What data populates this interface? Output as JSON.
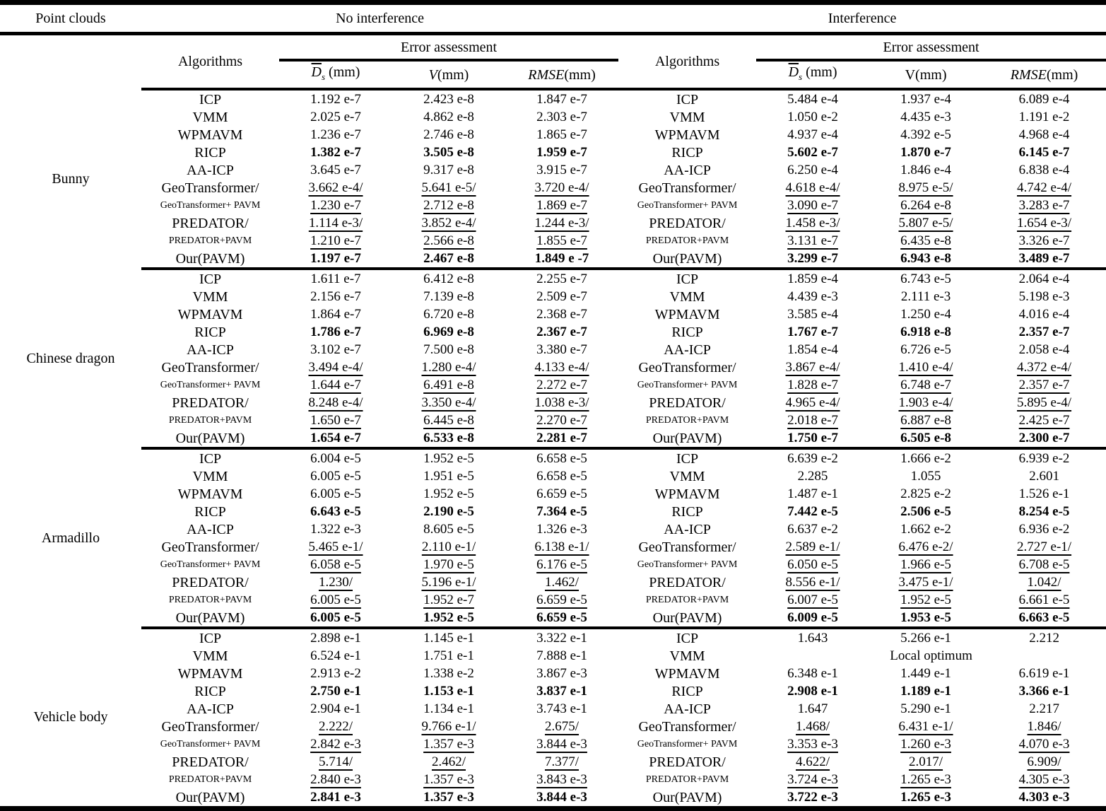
{
  "header": {
    "point_clouds": "Point clouds",
    "no_interference": "No interference",
    "interference": "Interference",
    "algorithms": "Algorithms",
    "error_assessment": "Error assessment",
    "ds_symbol": "D",
    "ds_sub": "s",
    "ds_unit": " (mm)",
    "v_label": "V",
    "v_unit": "(mm)",
    "rmse_label": "RMSE",
    "rmse_unit": "(mm)"
  },
  "sections": [
    {
      "name": "Bunny",
      "rows": [
        {
          "alg": "ICP",
          "emphasis": "normal",
          "small": false,
          "left": [
            "1.192 e-7",
            "2.423 e-8",
            "1.847 e-7"
          ],
          "right": [
            "5.484 e-4",
            "1.937 e-4",
            "6.089 e-4"
          ]
        },
        {
          "alg": "VMM",
          "emphasis": "normal",
          "small": false,
          "left": [
            "2.025 e-7",
            "4.862 e-8",
            "2.303 e-7"
          ],
          "right": [
            "1.050 e-2",
            "4.435 e-3",
            "1.191 e-2"
          ]
        },
        {
          "alg": "WPMAVM",
          "emphasis": "normal",
          "small": false,
          "left": [
            "1.236 e-7",
            "2.746 e-8",
            "1.865 e-7"
          ],
          "right": [
            "4.937 e-4",
            "4.392 e-5",
            "4.968 e-4"
          ]
        },
        {
          "alg": "RICP",
          "emphasis": "bold",
          "small": false,
          "left": [
            "1.382 e-7",
            "3.505 e-8",
            "1.959 e-7"
          ],
          "right": [
            "5.602 e-7",
            "1.870 e-7",
            "6.145 e-7"
          ]
        },
        {
          "alg": "AA-ICP",
          "emphasis": "normal",
          "small": false,
          "left": [
            "3.645 e-7",
            "9.317 e-8",
            "3.915 e-7"
          ],
          "right": [
            "6.250 e-4",
            "1.846 e-4",
            "6.838 e-4"
          ]
        },
        {
          "alg": "GeoTransformer/",
          "emphasis": "underline",
          "small": false,
          "left": [
            "3.662 e-4/",
            "5.641 e-5/",
            "3.720 e-4/"
          ],
          "right": [
            "4.618 e-4/",
            "8.975 e-5/",
            "4.742 e-4/"
          ]
        },
        {
          "alg": "GeoTransformer+ PAVM",
          "emphasis": "underline",
          "small": true,
          "left": [
            "1.230 e-7",
            "2.712 e-8",
            "1.869 e-7"
          ],
          "right": [
            "3.090 e-7",
            "6.264 e-8",
            "3.283 e-7"
          ]
        },
        {
          "alg": "PREDATOR/",
          "emphasis": "underline",
          "small": false,
          "left": [
            "1.114 e-3/",
            "3.852 e-4/",
            "1.244 e-3/"
          ],
          "right": [
            "1.458 e-3/",
            "5.807 e-5/",
            "1.654 e-3/"
          ]
        },
        {
          "alg": "PREDATOR+PAVM",
          "emphasis": "underline",
          "small": true,
          "left": [
            "1.210 e-7",
            "2.566 e-8",
            "1.855 e-7"
          ],
          "right": [
            "3.131 e-7",
            "6.435 e-8",
            "3.326 e-7"
          ]
        },
        {
          "alg": "Our(PAVM)",
          "emphasis": "bold",
          "small": false,
          "left": [
            "1.197 e-7",
            "2.467 e-8",
            "1.849 e -7"
          ],
          "right": [
            "3.299 e-7",
            "6.943 e-8",
            "3.489 e-7"
          ]
        }
      ]
    },
    {
      "name": "Chinese dragon",
      "rows": [
        {
          "alg": "ICP",
          "emphasis": "normal",
          "small": false,
          "left": [
            "1.611 e-7",
            "6.412 e-8",
            "2.255 e-7"
          ],
          "right": [
            "1.859 e-4",
            "6.743 e-5",
            "2.064 e-4"
          ]
        },
        {
          "alg": "VMM",
          "emphasis": "normal",
          "small": false,
          "left": [
            "2.156 e-7",
            "7.139 e-8",
            "2.509 e-7"
          ],
          "right": [
            "4.439 e-3",
            "2.111 e-3",
            "5.198 e-3"
          ]
        },
        {
          "alg": "WPMAVM",
          "emphasis": "normal",
          "small": false,
          "left": [
            "1.864 e-7",
            "6.720 e-8",
            "2.368 e-7"
          ],
          "right": [
            "3.585 e-4",
            "1.250 e-4",
            "4.016 e-4"
          ]
        },
        {
          "alg": "RICP",
          "emphasis": "bold",
          "small": false,
          "left": [
            "1.786 e-7",
            "6.969 e-8",
            "2.367 e-7"
          ],
          "right": [
            "1.767 e-7",
            "6.918 e-8",
            "2.357 e-7"
          ]
        },
        {
          "alg": "AA-ICP",
          "emphasis": "normal",
          "small": false,
          "left": [
            "3.102 e-7",
            "7.500 e-8",
            "3.380 e-7"
          ],
          "right": [
            "1.854 e-4",
            "6.726 e-5",
            "2.058 e-4"
          ]
        },
        {
          "alg": "GeoTransformer/",
          "emphasis": "underline",
          "small": false,
          "left": [
            "3.494 e-4/",
            "1.280 e-4/",
            "4.133 e-4/"
          ],
          "right": [
            "3.867 e-4/",
            "1.410 e-4/",
            "4.372 e-4/"
          ]
        },
        {
          "alg": "GeoTransformer+ PAVM",
          "emphasis": "underline",
          "small": true,
          "left": [
            "1.644 e-7",
            "6.491 e-8",
            "2.272 e-7"
          ],
          "right": [
            "1.828 e-7",
            "6.748 e-7",
            "2.357 e-7"
          ]
        },
        {
          "alg": "PREDATOR/",
          "emphasis": "underline",
          "small": false,
          "left": [
            "8.248 e-4/",
            "3.350 e-4/",
            "1.038 e-3/"
          ],
          "right": [
            "4.965 e-4/",
            "1.903 e-4/",
            "5.895 e-4/"
          ]
        },
        {
          "alg": "PREDATOR+PAVM",
          "emphasis": "underline",
          "small": true,
          "left": [
            "1.650 e-7",
            "6.445 e-8",
            "2.270 e-7"
          ],
          "right": [
            "2.018 e-7",
            "6.887 e-8",
            "2.425 e-7"
          ]
        },
        {
          "alg": "Our(PAVM)",
          "emphasis": "bold",
          "small": false,
          "left": [
            "1.654 e-7",
            "6.533 e-8",
            "2.281 e-7"
          ],
          "right": [
            "1.750 e-7",
            "6.505 e-8",
            "2.300 e-7"
          ]
        }
      ]
    },
    {
      "name": "Armadillo",
      "rows": [
        {
          "alg": "ICP",
          "emphasis": "normal",
          "small": false,
          "left": [
            "6.004 e-5",
            "1.952 e-5",
            "6.658 e-5"
          ],
          "right": [
            "6.639 e-2",
            "1.666 e-2",
            "6.939 e-2"
          ]
        },
        {
          "alg": "VMM",
          "emphasis": "normal",
          "small": false,
          "left": [
            "6.005 e-5",
            "1.951 e-5",
            "6.658 e-5"
          ],
          "right": [
            "2.285",
            "1.055",
            "2.601"
          ]
        },
        {
          "alg": "WPMAVM",
          "emphasis": "normal",
          "small": false,
          "left": [
            "6.005 e-5",
            "1.952 e-5",
            "6.659 e-5"
          ],
          "right": [
            "1.487 e-1",
            "2.825 e-2",
            "1.526 e-1"
          ]
        },
        {
          "alg": "RICP",
          "emphasis": "bold",
          "small": false,
          "left": [
            "6.643 e-5",
            "2.190 e-5",
            "7.364 e-5"
          ],
          "right": [
            "7.442 e-5",
            "2.506 e-5",
            "8.254 e-5"
          ]
        },
        {
          "alg": "AA-ICP",
          "emphasis": "normal",
          "small": false,
          "left": [
            "1.322 e-3",
            "8.605 e-5",
            "1.326 e-3"
          ],
          "right": [
            "6.637 e-2",
            "1.662 e-2",
            "6.936 e-2"
          ]
        },
        {
          "alg": "GeoTransformer/",
          "emphasis": "underline",
          "small": false,
          "left": [
            "5.465 e-1/",
            "2.110 e-1/",
            "6.138 e-1/"
          ],
          "right": [
            "2.589 e-1/",
            "6.476 e-2/",
            "2.727 e-1/"
          ]
        },
        {
          "alg": "GeoTransformer+ PAVM",
          "emphasis": "underline",
          "small": true,
          "left": [
            "6.058 e-5",
            "1.970 e-5",
            "6.176 e-5"
          ],
          "right": [
            "6.050 e-5",
            "1.966 e-5",
            "6.708 e-5"
          ]
        },
        {
          "alg": "PREDATOR/",
          "emphasis": "underline",
          "small": false,
          "left": [
            "1.230/",
            "5.196 e-1/",
            "1.462/"
          ],
          "right": [
            "8.556 e-1/",
            "3.475 e-1/",
            "1.042/"
          ]
        },
        {
          "alg": "PREDATOR+PAVM",
          "emphasis": "underline",
          "small": true,
          "left": [
            "6.005 e-5",
            "1.952 e-7",
            "6.659 e-5"
          ],
          "right": [
            "6.007 e-5",
            "1.952 e-5",
            "6.661 e-5"
          ]
        },
        {
          "alg": "Our(PAVM)",
          "emphasis": "bold",
          "small": false,
          "left": [
            "6.005 e-5",
            "1.952 e-5",
            "6.659 e-5"
          ],
          "right": [
            "6.009 e-5",
            "1.953 e-5",
            "6.663 e-5"
          ]
        }
      ]
    },
    {
      "name": "Vehicle body",
      "rows": [
        {
          "alg": "ICP",
          "emphasis": "normal",
          "small": false,
          "left": [
            "2.898 e-1",
            "1.145 e-1",
            "3.322 e-1"
          ],
          "right": [
            "1.643",
            "5.266 e-1",
            "2.212"
          ]
        },
        {
          "alg": "VMM",
          "emphasis": "normal",
          "small": false,
          "left": [
            "6.524 e-1",
            "1.751 e-1",
            "7.888 e-1"
          ],
          "right_span": "Local optimum"
        },
        {
          "alg": "WPMAVM",
          "emphasis": "normal",
          "small": false,
          "left": [
            "2.913 e-2",
            "1.338 e-2",
            "3.867 e-3"
          ],
          "right": [
            "6.348 e-1",
            "1.449 e-1",
            "6.619 e-1"
          ]
        },
        {
          "alg": "RICP",
          "emphasis": "bold",
          "small": false,
          "left": [
            "2.750 e-1",
            "1.153 e-1",
            "3.837 e-1"
          ],
          "right": [
            "2.908 e-1",
            "1.189 e-1",
            "3.366 e-1"
          ]
        },
        {
          "alg": "AA-ICP",
          "emphasis": "normal",
          "small": false,
          "left": [
            "2.904 e-1",
            "1.134 e-1",
            "3.743 e-1"
          ],
          "right": [
            "1.647",
            "5.290 e-1",
            "2.217"
          ]
        },
        {
          "alg": "GeoTransformer/",
          "emphasis": "underline",
          "small": false,
          "left": [
            "2.222/",
            "9.766 e-1/",
            "2.675/"
          ],
          "right": [
            "1.468/",
            "6.431 e-1/",
            "1.846/"
          ]
        },
        {
          "alg": "GeoTransformer+ PAVM",
          "emphasis": "underline",
          "small": true,
          "left": [
            "2.842 e-3",
            "1.357 e-3",
            "3.844 e-3"
          ],
          "right": [
            "3.353 e-3",
            "1.260 e-3",
            "4.070 e-3"
          ]
        },
        {
          "alg": "PREDATOR/",
          "emphasis": "underline",
          "small": false,
          "left": [
            "5.714/",
            "2.462/",
            "7.377/"
          ],
          "right": [
            "4.622/",
            "2.017/",
            "6.909/"
          ]
        },
        {
          "alg": "PREDATOR+PAVM",
          "emphasis": "underline",
          "small": true,
          "left": [
            "2.840 e-3",
            "1.357 e-3",
            "3.843 e-3"
          ],
          "right": [
            "3.724 e-3",
            "1.265 e-3",
            "4.305 e-3"
          ]
        },
        {
          "alg": "Our(PAVM)",
          "emphasis": "bold",
          "small": false,
          "left": [
            "2.841 e-3",
            "1.357 e-3",
            "3.844 e-3"
          ],
          "right": [
            "3.722 e-3",
            "1.265 e-3",
            "4.303 e-3"
          ]
        }
      ]
    }
  ]
}
